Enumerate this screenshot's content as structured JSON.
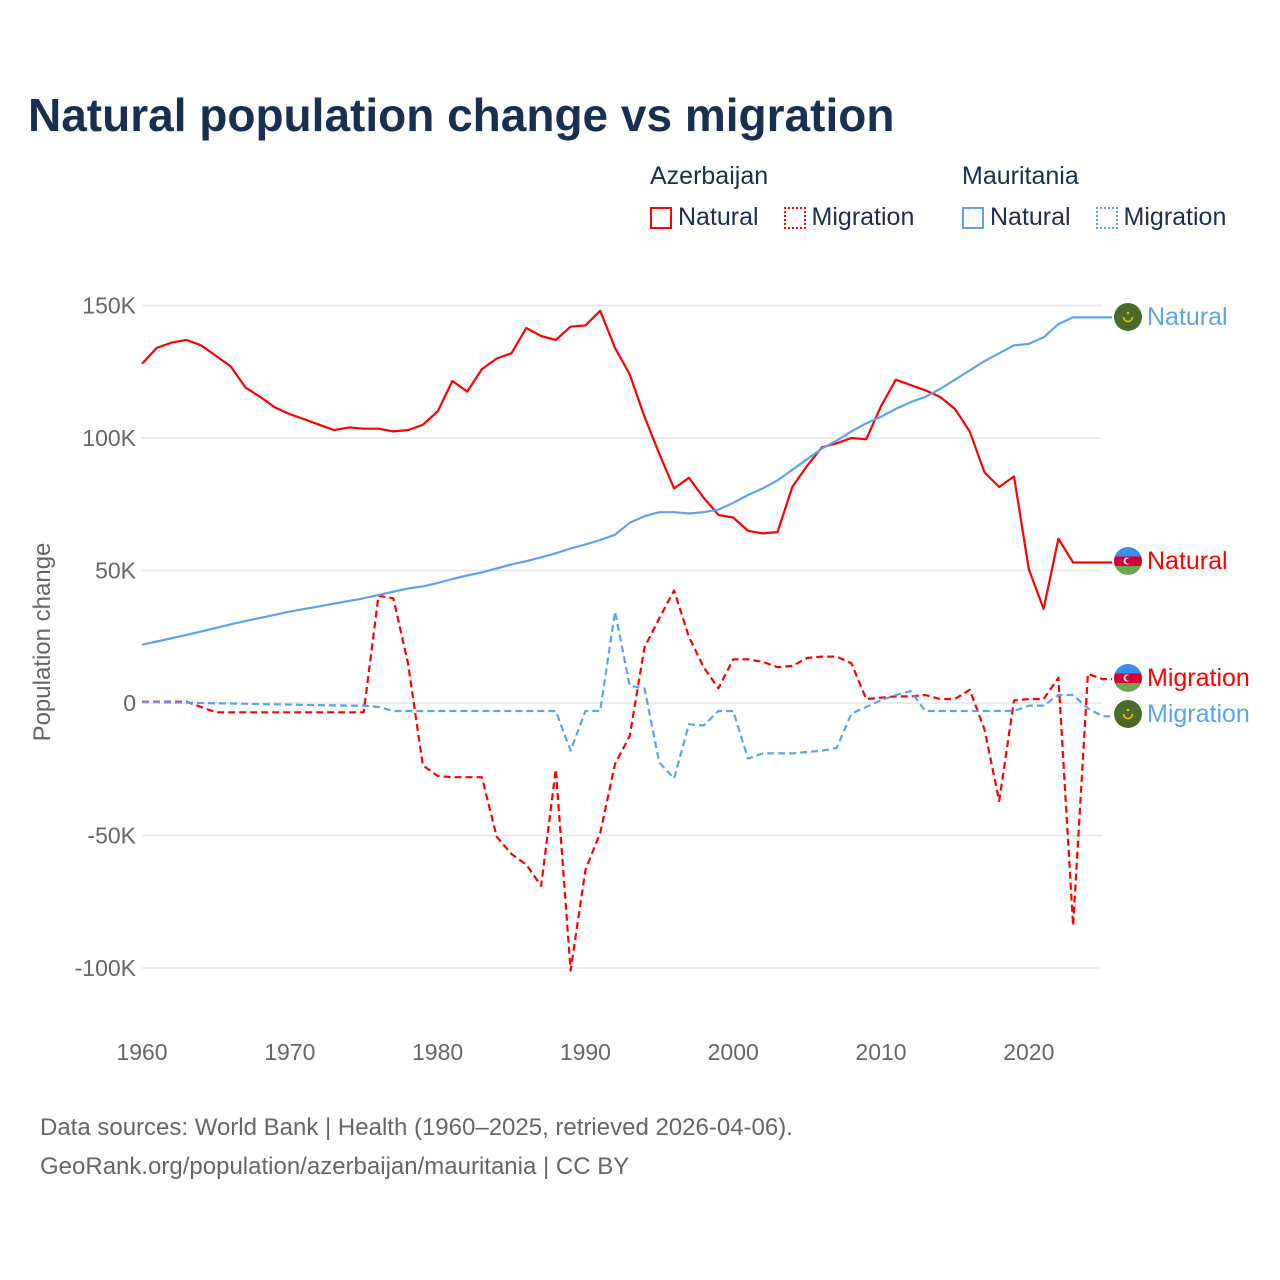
{
  "title": "Natural population change vs migration",
  "legend": {
    "groups": [
      {
        "name": "Azerbaijan",
        "items": [
          {
            "label": "Natural",
            "style": "solid"
          },
          {
            "label": "Migration",
            "style": "dotted"
          }
        ],
        "color": "#ff0000"
      },
      {
        "name": "Mauritania",
        "items": [
          {
            "label": "Natural",
            "style": "solid"
          },
          {
            "label": "Migration",
            "style": "dotted"
          }
        ],
        "color": "#5ba4ec"
      }
    ]
  },
  "footer": {
    "line1": "Data sources: World Bank | Health (1960–2025, retrieved 2026-04-06).",
    "line2": "GeoRank.org/population/azerbaijan/mauritania | CC BY"
  },
  "chart_data": {
    "type": "line",
    "title": "Natural population change vs migration",
    "xlabel": "",
    "ylabel": "Population change",
    "xlim": [
      1960,
      2025
    ],
    "ylim": [
      -115000,
      160000
    ],
    "x_ticks": [
      1960,
      1970,
      1980,
      1990,
      2000,
      2010,
      2020
    ],
    "x_tick_labels": [
      "1960",
      "1970",
      "1980",
      "1990",
      "2000",
      "2010",
      "2020"
    ],
    "y_ticks": [
      150000,
      100000,
      50000,
      0,
      -50000,
      -100000
    ],
    "y_tick_labels": [
      "150K",
      "100K",
      "50K",
      "0",
      "-50K",
      "-100K"
    ],
    "grid": true,
    "legend_position": "top-right",
    "x_start": 1960,
    "series": [
      {
        "name": "Azerbaijan Natural",
        "end_label": "Natural",
        "color": "#ff0000",
        "dash": "solid",
        "flag": "azerbaijan",
        "values_k": [
          128,
          134,
          136,
          137,
          135,
          131,
          127,
          119,
          115.5,
          111.5,
          109,
          107,
          105,
          103,
          104,
          103.5,
          103.5,
          102.5,
          103,
          105,
          110,
          121.5,
          117.5,
          126,
          130,
          132,
          141.5,
          138.5,
          137,
          142,
          142.5,
          148,
          134,
          124,
          108,
          94,
          81,
          85,
          77.5,
          71,
          70,
          65,
          64,
          64.5,
          81.5,
          89.5,
          96.5,
          98,
          100,
          99.5,
          112,
          122,
          120,
          118,
          115.5,
          111,
          102.5,
          87,
          81.5,
          85.5,
          50.5,
          35.5,
          62,
          53,
          53,
          53
        ]
      },
      {
        "name": "Azerbaijan Migration",
        "end_label": "Migration",
        "color": "#ff0000",
        "dash": "dashed",
        "flag": "azerbaijan",
        "values_k": [
          0.5,
          0.5,
          0.5,
          0.5,
          -1.5,
          -3.5,
          -3.5,
          -3.5,
          -3.5,
          -3.5,
          -3.5,
          -3.5,
          -3.5,
          -3.5,
          -3.5,
          -3.5,
          40.5,
          39.5,
          15,
          -23.5,
          -27.5,
          -28,
          -28,
          -28,
          -50.5,
          -57,
          -61,
          -69,
          -25,
          -101,
          -63,
          -49,
          -23,
          -12.5,
          21,
          32,
          42.5,
          25,
          13.5,
          5.5,
          16.5,
          16.5,
          15.5,
          13.5,
          14,
          17,
          17.5,
          17.5,
          15,
          1.5,
          2,
          2.5,
          2.5,
          3,
          1.5,
          1.5,
          5,
          -10,
          -37,
          1,
          1.5,
          1.5,
          9.5,
          -84,
          11,
          9
        ]
      },
      {
        "name": "Mauritania Natural",
        "end_label": "Natural",
        "color": "#5ba4ec",
        "dash": "solid",
        "flag": "mauritania",
        "values_k": [
          22,
          23.2,
          24.4,
          25.7,
          27,
          28.3,
          29.7,
          30.9,
          32.1,
          33.3,
          34.5,
          35.5,
          36.5,
          37.5,
          38.5,
          39.5,
          40.8,
          42,
          43.2,
          44,
          45.3,
          46.8,
          48.1,
          49.3,
          50.8,
          52.3,
          53.5,
          55,
          56.5,
          58.3,
          59.8,
          61.5,
          63.5,
          68,
          70.5,
          72,
          72,
          71.5,
          72,
          73,
          75.5,
          78.5,
          81,
          84,
          88,
          92,
          96,
          99,
          102.5,
          105.5,
          108,
          111,
          113.5,
          115.5,
          118.5,
          122,
          125.5,
          129,
          132,
          135,
          135.5,
          138,
          143,
          145.5,
          145.5,
          145.5
        ]
      },
      {
        "name": "Mauritania Migration",
        "end_label": "Migration",
        "color": "#5ba4ec",
        "dash": "dashed",
        "flag": "mauritania",
        "values_k": [
          0.3,
          0.3,
          0.2,
          0.1,
          0,
          -0.1,
          -0.2,
          -0.3,
          -0.4,
          -0.5,
          -0.6,
          -0.7,
          -0.8,
          -0.9,
          -1,
          -1,
          -1.5,
          -3,
          -3,
          -3,
          -3,
          -3,
          -3,
          -3,
          -3,
          -3,
          -3,
          -3,
          -3,
          -18,
          -3,
          -3,
          34.5,
          6.5,
          5.5,
          -22.5,
          -28.5,
          -8,
          -8.5,
          -3,
          -3,
          -21,
          -19,
          -19,
          -19,
          -18.5,
          -18,
          -17,
          -4,
          -1.5,
          1,
          3,
          4.5,
          -3,
          -3,
          -3,
          -3,
          -3,
          -3,
          -3,
          -1,
          -1,
          3,
          3,
          -2,
          -5
        ]
      }
    ]
  }
}
